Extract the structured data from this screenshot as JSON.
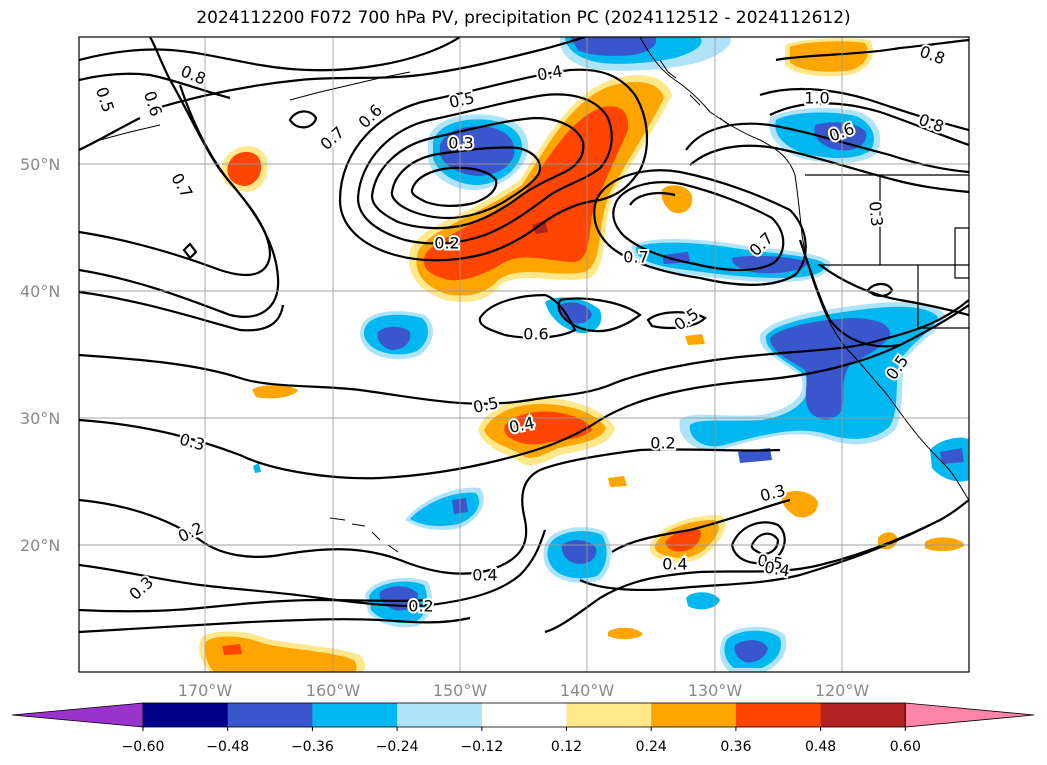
{
  "title": "2024112200 F072 700 hPa PV, precipitation PC (2024112512 - 2024112612)",
  "lat_labels": [
    "50°N",
    "40°N",
    "30°N",
    "20°N"
  ],
  "lon_labels": [
    "170°W",
    "160°W",
    "150°W",
    "140°W",
    "130°W",
    "120°W"
  ],
  "colorbar": {
    "ticks": [
      "−0.60",
      "−0.48",
      "−0.36",
      "−0.24",
      "−0.12",
      "0.12",
      "0.24",
      "0.36",
      "0.48",
      "0.60"
    ],
    "colors": [
      "#9933cc",
      "#00008b",
      "#3a56cc",
      "#00b7f0",
      "#aee3fa",
      "#ffffff",
      "#ffe88a",
      "#ffa500",
      "#ff4500",
      "#b22222",
      "#ff85a8"
    ]
  },
  "contour_labels": [
    {
      "text": "0.8"
    },
    {
      "text": "0.5"
    },
    {
      "text": "0.6"
    },
    {
      "text": "0.7"
    },
    {
      "text": "0.6"
    },
    {
      "text": "0.5"
    },
    {
      "text": "0.4"
    },
    {
      "text": "0.3"
    },
    {
      "text": "0.2"
    },
    {
      "text": "0.7"
    },
    {
      "text": "0.6"
    },
    {
      "text": "0.5"
    },
    {
      "text": "0.4"
    },
    {
      "text": "0.3"
    },
    {
      "text": "0.2"
    },
    {
      "text": "0.3"
    },
    {
      "text": "0.2"
    },
    {
      "text": "0.4"
    },
    {
      "text": "0.2"
    },
    {
      "text": "0.3"
    },
    {
      "text": "0.4"
    },
    {
      "text": "0.5"
    },
    {
      "text": "0.4"
    },
    {
      "text": "0.5"
    },
    {
      "text": "0.7"
    },
    {
      "text": "0.7"
    },
    {
      "text": "1.0"
    },
    {
      "text": "0.8"
    },
    {
      "text": "0.6"
    },
    {
      "text": "0.8"
    },
    {
      "text": "0.3"
    },
    {
      "text": "0.5"
    }
  ]
}
